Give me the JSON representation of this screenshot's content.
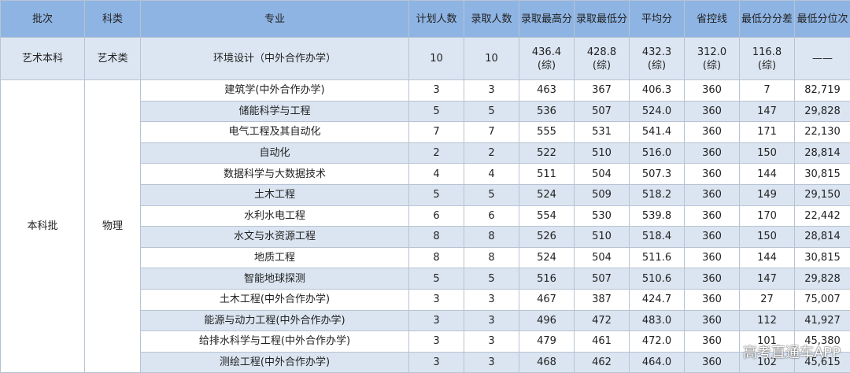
{
  "table": {
    "header": [
      "批次",
      "科类",
      "专业",
      "计划人数",
      "录取人数",
      "录取最高分",
      "录取最低分",
      "平均分",
      "省控线",
      "最低分分差",
      "最低分位次"
    ],
    "rows": [
      [
        "艺术本科",
        "艺术类",
        "环境设计（中外合作办学）",
        "10",
        "10",
        "436.4\n(综)",
        "428.8\n(综)",
        "432.3\n(综)",
        "312.0\n(综)",
        "116.8\n(综)",
        "——"
      ]
    ],
    "group": {
      "batch": "本科批",
      "subject": "物理"
    },
    "group_rows": [
      [
        "建筑学(中外合作办学)",
        "3",
        "3",
        "463",
        "367",
        "406.3",
        "360",
        "7",
        "82,719"
      ],
      [
        "储能科学与工程",
        "5",
        "5",
        "536",
        "507",
        "524.0",
        "360",
        "147",
        "29,828"
      ],
      [
        "电气工程及其自动化",
        "7",
        "7",
        "555",
        "531",
        "541.4",
        "360",
        "171",
        "22,130"
      ],
      [
        "自动化",
        "2",
        "2",
        "522",
        "510",
        "516.0",
        "360",
        "150",
        "28,814"
      ],
      [
        "数据科学与大数据技术",
        "4",
        "4",
        "511",
        "504",
        "507.3",
        "360",
        "144",
        "30,815"
      ],
      [
        "土木工程",
        "5",
        "5",
        "524",
        "509",
        "518.2",
        "360",
        "149",
        "29,150"
      ],
      [
        "水利水电工程",
        "6",
        "6",
        "554",
        "530",
        "539.8",
        "360",
        "170",
        "22,442"
      ],
      [
        "水文与水资源工程",
        "8",
        "8",
        "526",
        "510",
        "518.4",
        "360",
        "150",
        "28,814"
      ],
      [
        "地质工程",
        "8",
        "8",
        "524",
        "504",
        "511.6",
        "360",
        "144",
        "30,815"
      ],
      [
        "智能地球探测",
        "5",
        "5",
        "516",
        "507",
        "510.6",
        "360",
        "147",
        "29,828"
      ],
      [
        "土木工程(中外合作办学)",
        "3",
        "3",
        "467",
        "387",
        "424.7",
        "360",
        "27",
        "75,007"
      ],
      [
        "能源与动力工程(中外合作办学)",
        "3",
        "3",
        "496",
        "472",
        "483.0",
        "360",
        "112",
        "41,927"
      ],
      [
        "给排水科学与工程(中外合作办学)",
        "3",
        "3",
        "479",
        "461",
        "472.0",
        "360",
        "101",
        "45,380"
      ],
      [
        "测绘工程(中外合作办学)",
        "3",
        "3",
        "468",
        "462",
        "464.0",
        "360",
        "102",
        "45,615"
      ]
    ]
  },
  "watermark": "高考直通车APP"
}
